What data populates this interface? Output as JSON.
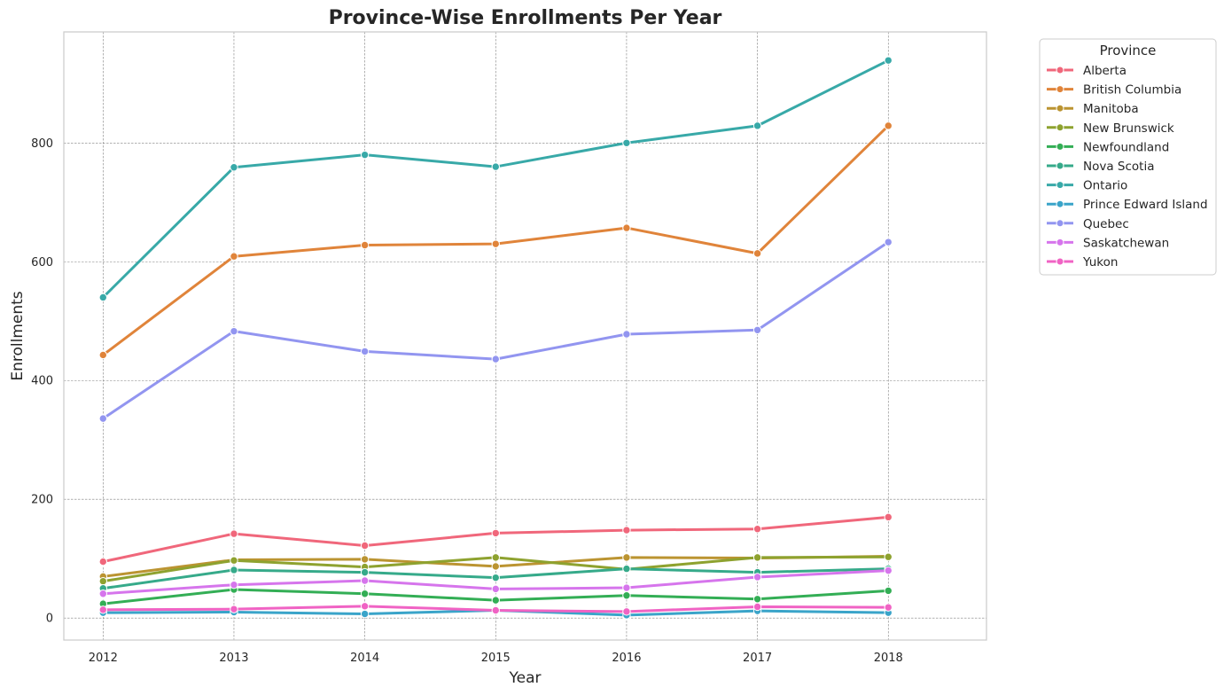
{
  "chart_data": {
    "type": "line",
    "title": "Province-Wise Enrollments Per Year",
    "xlabel": "Year",
    "ylabel": "Enrollments",
    "x": [
      2012,
      2013,
      2014,
      2015,
      2016,
      2017,
      2018
    ],
    "x_tick_labels": [
      "2012",
      "2013",
      "2014",
      "2015",
      "2016",
      "2017",
      "2018"
    ],
    "y_ticks": [
      0,
      200,
      400,
      600,
      800
    ],
    "y_tick_labels": [
      "0",
      "200",
      "400",
      "600",
      "800"
    ],
    "xlim": [
      2011.7,
      2018.75
    ],
    "ylim": [
      -37,
      987
    ],
    "grid": true,
    "legend": {
      "title": "Province",
      "placement": "upper-right-outside"
    },
    "series": [
      {
        "name": "Alberta",
        "color": "#f0677b",
        "values": [
          95,
          142,
          122,
          143,
          148,
          150,
          170
        ]
      },
      {
        "name": "British Columbia",
        "color": "#e0843a",
        "values": [
          443,
          609,
          628,
          630,
          657,
          614,
          829
        ]
      },
      {
        "name": "Manitoba",
        "color": "#bb9431",
        "values": [
          70,
          98,
          99,
          87,
          102,
          101,
          104
        ]
      },
      {
        "name": "New Brunswick",
        "color": "#8ea22f",
        "values": [
          62,
          97,
          86,
          102,
          82,
          102,
          103
        ]
      },
      {
        "name": "Newfoundland",
        "color": "#33ae55",
        "values": [
          24,
          48,
          41,
          30,
          38,
          32,
          46
        ]
      },
      {
        "name": "Nova Scotia",
        "color": "#36aa8a",
        "values": [
          50,
          81,
          77,
          68,
          83,
          77,
          83
        ]
      },
      {
        "name": "Ontario",
        "color": "#38a9a8",
        "values": [
          540,
          759,
          780,
          760,
          800,
          829,
          939
        ]
      },
      {
        "name": "Prince Edward Island",
        "color": "#3aa4c9",
        "values": [
          9,
          10,
          7,
          13,
          5,
          12,
          9
        ]
      },
      {
        "name": "Quebec",
        "color": "#9295f0",
        "values": [
          336,
          483,
          449,
          436,
          478,
          485,
          633
        ]
      },
      {
        "name": "Saskatchewan",
        "color": "#d675ec",
        "values": [
          41,
          56,
          63,
          49,
          51,
          69,
          80
        ]
      },
      {
        "name": "Yukon",
        "color": "#f063c4",
        "values": [
          14,
          15,
          20,
          13,
          11,
          19,
          18
        ]
      }
    ]
  }
}
